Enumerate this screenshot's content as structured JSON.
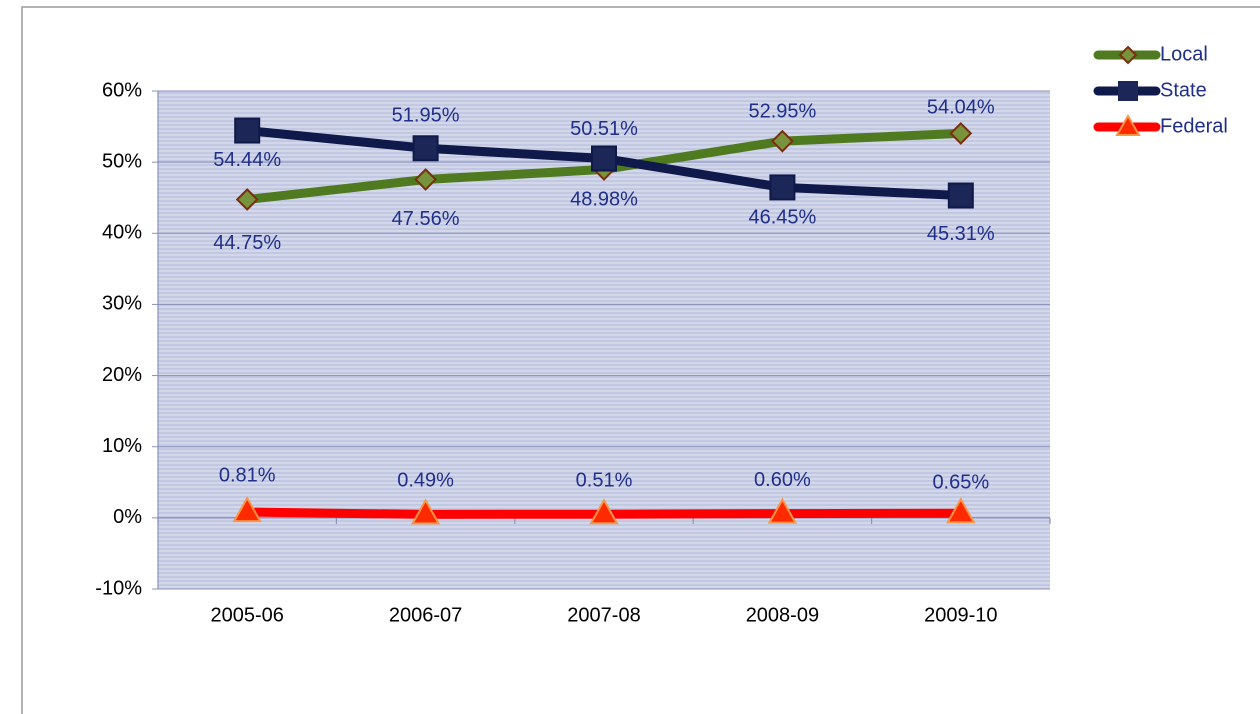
{
  "chart_data": {
    "type": "line",
    "categories": [
      "2005-06",
      "2006-07",
      "2007-08",
      "2008-09",
      "2009-10"
    ],
    "series": [
      {
        "name": "Local",
        "color": "#4f7a1f",
        "marker": "diamond",
        "values": [
          44.75,
          47.56,
          48.98,
          52.95,
          54.04
        ],
        "value_labels": [
          "44.75%",
          "47.56%",
          "48.98%",
          "52.95%",
          "54.04%"
        ]
      },
      {
        "name": "State",
        "color": "#0f1a4a",
        "marker": "square",
        "values": [
          54.44,
          51.95,
          50.51,
          46.45,
          45.31
        ],
        "value_labels": [
          "54.44%",
          "51.95%",
          "50.51%",
          "46.45%",
          "45.31%"
        ]
      },
      {
        "name": "Federal",
        "color": "#ff0000",
        "marker": "triangle",
        "values": [
          0.81,
          0.49,
          0.51,
          0.6,
          0.65
        ],
        "value_labels": [
          "0.81%",
          "0.49%",
          "0.51%",
          "0.60%",
          "0.65%"
        ]
      }
    ],
    "ylim": [
      -10,
      60
    ],
    "yticks": [
      {
        "value": -10,
        "label": "-10%"
      },
      {
        "value": 0,
        "label": "0%"
      },
      {
        "value": 10,
        "label": "10%"
      },
      {
        "value": 20,
        "label": "20%"
      },
      {
        "value": 30,
        "label": "30%"
      },
      {
        "value": 40,
        "label": "40%"
      },
      {
        "value": 50,
        "label": "50%"
      },
      {
        "value": 60,
        "label": "60%"
      }
    ],
    "grid": true,
    "legend": "top-right"
  }
}
